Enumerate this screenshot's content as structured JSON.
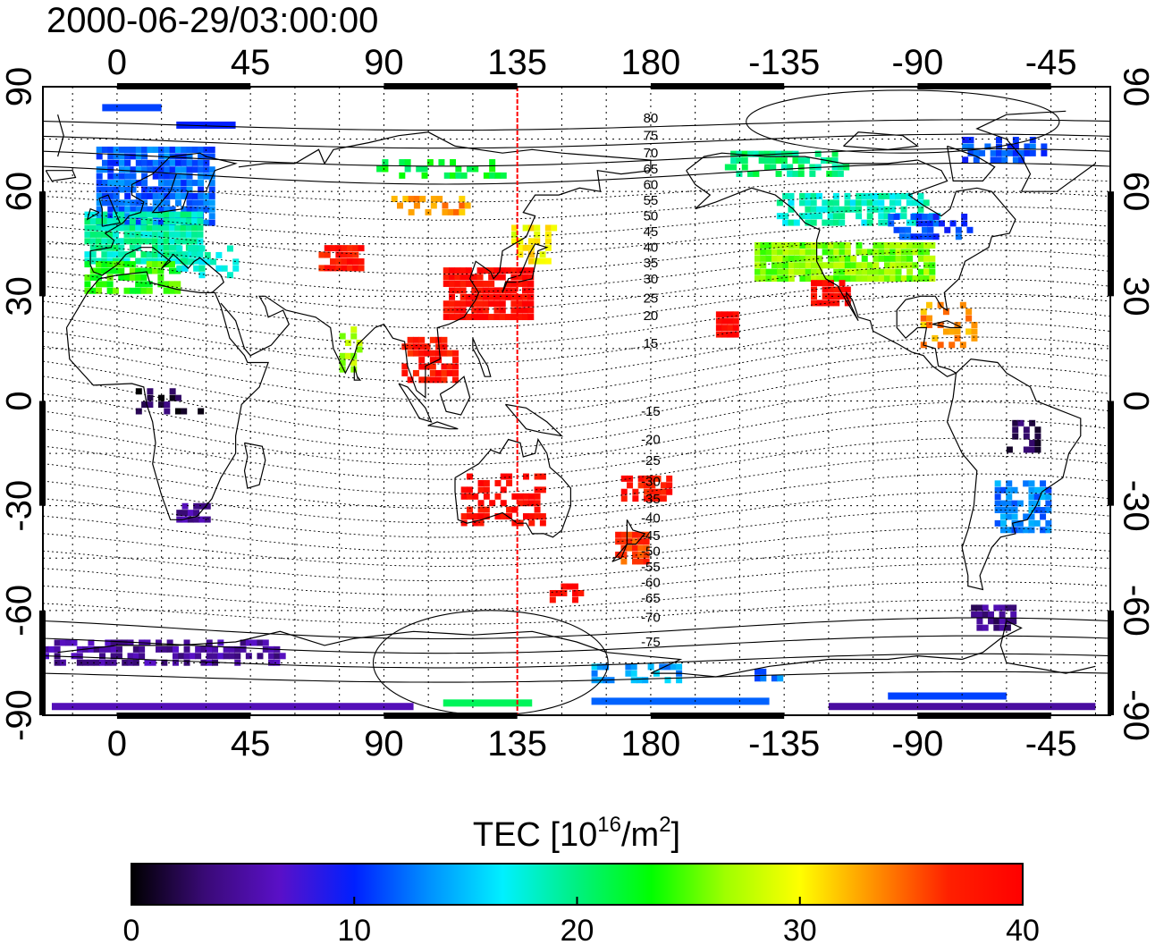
{
  "title": "2000-06-29/03:00:00",
  "map": {
    "lon_start": -25,
    "lon_end": 335,
    "lat_top": 90,
    "lat_bottom": -90,
    "top_lon_ticks": [
      {
        "value": 0,
        "label": "0"
      },
      {
        "value": 45,
        "label": "45"
      },
      {
        "value": 90,
        "label": "90"
      },
      {
        "value": 135,
        "label": "135"
      },
      {
        "value": 180,
        "label": "180"
      },
      {
        "value": 225,
        "label": "-135"
      },
      {
        "value": 270,
        "label": "-90"
      },
      {
        "value": 315,
        "label": "-45"
      }
    ],
    "bottom_lon_ticks": [
      {
        "value": 0,
        "label": "0"
      },
      {
        "value": 45,
        "label": "45"
      },
      {
        "value": 90,
        "label": "90"
      },
      {
        "value": 135,
        "label": "135"
      },
      {
        "value": 180,
        "label": "180"
      },
      {
        "value": 225,
        "label": "-135"
      },
      {
        "value": 270,
        "label": "-90"
      },
      {
        "value": 315,
        "label": "-45"
      }
    ],
    "lat_ticks": [
      {
        "value": 90,
        "label": "90"
      },
      {
        "value": 60,
        "label": "60"
      },
      {
        "value": 30,
        "label": "30"
      },
      {
        "value": 0,
        "label": "0"
      },
      {
        "value": -30,
        "label": "-30"
      },
      {
        "value": -60,
        "label": "-60"
      },
      {
        "value": -90,
        "label": "-90"
      }
    ],
    "meridian_line_lon": 135,
    "meridian_line_color": "#ff0000",
    "magnetic_lat_labels": [
      {
        "value": 80,
        "label": "80",
        "lat": 81
      },
      {
        "value": 75,
        "label": "75",
        "lat": 76
      },
      {
        "value": 70,
        "label": "70",
        "lat": 71
      },
      {
        "value": 65,
        "label": "65",
        "lat": 66.5
      },
      {
        "value": 60,
        "label": "60",
        "lat": 62
      },
      {
        "value": 55,
        "label": "55",
        "lat": 57.5
      },
      {
        "value": 50,
        "label": "50",
        "lat": 53
      },
      {
        "value": 45,
        "label": "45",
        "lat": 48.5
      },
      {
        "value": 40,
        "label": "40",
        "lat": 44
      },
      {
        "value": 35,
        "label": "35",
        "lat": 39.5
      },
      {
        "value": 30,
        "label": "30",
        "lat": 35
      },
      {
        "value": 25,
        "label": "25",
        "lat": 29.5
      },
      {
        "value": 20,
        "label": "20",
        "lat": 24.5
      },
      {
        "value": 15,
        "label": "15",
        "lat": 16.5
      },
      {
        "value": -15,
        "label": "-15",
        "lat": -3
      },
      {
        "value": -20,
        "label": "-20",
        "lat": -11
      },
      {
        "value": -25,
        "label": "-25",
        "lat": -17
      },
      {
        "value": -30,
        "label": "-30",
        "lat": -23
      },
      {
        "value": -35,
        "label": "-35",
        "lat": -28
      },
      {
        "value": -40,
        "label": "-40",
        "lat": -33.5
      },
      {
        "value": -45,
        "label": "-45",
        "lat": -38.5
      },
      {
        "value": -50,
        "label": "-50",
        "lat": -43
      },
      {
        "value": -55,
        "label": "-55",
        "lat": -47.5
      },
      {
        "value": -60,
        "label": "-60",
        "lat": -52
      },
      {
        "value": -65,
        "label": "-65",
        "lat": -56.5
      },
      {
        "value": -70,
        "label": "-70",
        "lat": -62
      },
      {
        "value": -75,
        "label": "-75",
        "lat": -69
      }
    ],
    "magnetic_label_lon": 180
  },
  "colorbar": {
    "label_main": "TEC  [10",
    "label_sup1": "16",
    "label_mid": "/m",
    "label_sup2": "2",
    "label_end": "]",
    "min": 0,
    "max": 40,
    "ticks": [
      {
        "value": 0,
        "label": "0"
      },
      {
        "value": 10,
        "label": "10"
      },
      {
        "value": 20,
        "label": "20"
      },
      {
        "value": 30,
        "label": "30"
      },
      {
        "value": 40,
        "label": "40"
      }
    ],
    "stops": [
      "#000000",
      "#3a0a78",
      "#5a10c8",
      "#0020ff",
      "#0090ff",
      "#00f0ff",
      "#00f080",
      "#00ff00",
      "#a0ff00",
      "#ffff00",
      "#ff9000",
      "#ff2000",
      "#ff0000"
    ]
  },
  "tec_regions": [
    {
      "lon": 12,
      "lat": 62,
      "dlon": 38,
      "dlat": 22,
      "tec": 12,
      "density": 0.85
    },
    {
      "lon": 8,
      "lat": 47,
      "dlon": 38,
      "dlat": 14,
      "tec": 19,
      "density": 0.9
    },
    {
      "lon": 5,
      "lat": 36,
      "dlon": 32,
      "dlat": 9,
      "tec": 24,
      "density": 0.75
    },
    {
      "lon": 30,
      "lat": 40,
      "dlon": 20,
      "dlat": 8,
      "tec": 18,
      "density": 0.5
    },
    {
      "lon": 75,
      "lat": 41,
      "dlon": 14,
      "dlat": 6,
      "tec": 38,
      "density": 0.8
    },
    {
      "lon": 105,
      "lat": 56,
      "dlon": 25,
      "dlat": 4,
      "tec": 33,
      "density": 0.5
    },
    {
      "lon": 125,
      "lat": 31,
      "dlon": 30,
      "dlat": 14,
      "tec": 39,
      "density": 0.9
    },
    {
      "lon": 140,
      "lat": 45,
      "dlon": 14,
      "dlat": 10,
      "tec": 30,
      "density": 0.7
    },
    {
      "lon": 105,
      "lat": 12,
      "dlon": 18,
      "dlat": 12,
      "tec": 38,
      "density": 0.55
    },
    {
      "lon": 78,
      "lat": 16,
      "dlon": 6,
      "dlat": 14,
      "tec": 27,
      "density": 0.5
    },
    {
      "lon": 130,
      "lat": -28,
      "dlon": 28,
      "dlat": 14,
      "tec": 39,
      "density": 0.45
    },
    {
      "lon": 173,
      "lat": -42,
      "dlon": 10,
      "dlat": 8,
      "tec": 36,
      "density": 0.9
    },
    {
      "lon": 178,
      "lat": -25,
      "dlon": 16,
      "dlat": 6,
      "tec": 38,
      "density": 0.75
    },
    {
      "lon": 150,
      "lat": -55,
      "dlon": 12,
      "dlat": 4,
      "tec": 39,
      "density": 0.5
    },
    {
      "lon": 205,
      "lat": 22,
      "dlon": 6,
      "dlat": 6,
      "tec": 39,
      "density": 0.9
    },
    {
      "lon": 245,
      "lat": 40,
      "dlon": 60,
      "dlat": 10,
      "tec": 26,
      "density": 0.9
    },
    {
      "lon": 250,
      "lat": 55,
      "dlon": 55,
      "dlat": 8,
      "tec": 18,
      "density": 0.7
    },
    {
      "lon": 240,
      "lat": 31,
      "dlon": 12,
      "dlat": 6,
      "tec": 39,
      "density": 0.9
    },
    {
      "lon": 275,
      "lat": 50,
      "dlon": 30,
      "dlat": 6,
      "tec": 11,
      "density": 0.6
    },
    {
      "lon": 280,
      "lat": 22,
      "dlon": 18,
      "dlat": 12,
      "tec": 33,
      "density": 0.5
    },
    {
      "lon": 305,
      "lat": -30,
      "dlon": 18,
      "dlat": 14,
      "tec": 13,
      "density": 0.6
    },
    {
      "lon": 305,
      "lat": -10,
      "dlon": 10,
      "dlat": 8,
      "tec": 2,
      "density": 0.5
    },
    {
      "lon": 295,
      "lat": -62,
      "dlon": 14,
      "dlat": 6,
      "tec": 4,
      "density": 0.8
    },
    {
      "lon": 25,
      "lat": -32,
      "dlon": 10,
      "dlat": 4,
      "tec": 5,
      "density": 0.8
    },
    {
      "lon": 15,
      "lat": -72,
      "dlon": 80,
      "dlat": 6,
      "tec": 5,
      "density": 0.6
    },
    {
      "lon": 175,
      "lat": -78,
      "dlon": 30,
      "dlat": 4,
      "tec": 14,
      "density": 0.5
    },
    {
      "lon": 220,
      "lat": -78,
      "dlon": 10,
      "dlat": 3,
      "tec": 12,
      "density": 0.5
    },
    {
      "lon": 15,
      "lat": 0,
      "dlon": 25,
      "dlat": 6,
      "tec": 2,
      "density": 0.3
    },
    {
      "lon": 110,
      "lat": 67,
      "dlon": 45,
      "dlat": 5,
      "tec": 22,
      "density": 0.4
    },
    {
      "lon": 225,
      "lat": 68,
      "dlon": 40,
      "dlat": 6,
      "tec": 20,
      "density": 0.55
    },
    {
      "lon": 300,
      "lat": 72,
      "dlon": 30,
      "dlat": 6,
      "tec": 11,
      "density": 0.4
    }
  ],
  "tec_bands": [
    {
      "lon1": -22,
      "lon2": 100,
      "lat": -87.5,
      "tec": 6
    },
    {
      "lon1": 110,
      "lon2": 140,
      "lat": -86.5,
      "tec": 21
    },
    {
      "lon1": 160,
      "lon2": 220,
      "lat": -86,
      "tec": 12
    },
    {
      "lon1": 240,
      "lon2": 330,
      "lat": -87.5,
      "tec": 5
    },
    {
      "lon1": 260,
      "lon2": 300,
      "lat": -84.5,
      "tec": 11
    },
    {
      "lon1": -5,
      "lon2": 15,
      "lat": 84,
      "tec": 11
    },
    {
      "lon1": 20,
      "lon2": 40,
      "lat": 79,
      "tec": 10
    }
  ],
  "mag_poles": [
    {
      "lon": 265,
      "lat": 80,
      "rx": 24,
      "ry": 3
    },
    {
      "lon": 126,
      "lat": -75,
      "rx": 18,
      "ry": 5
    }
  ]
}
